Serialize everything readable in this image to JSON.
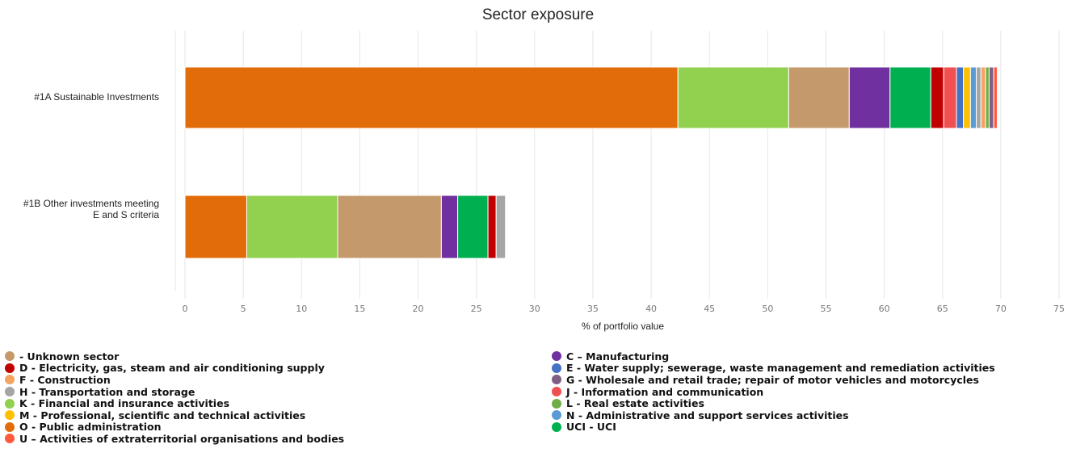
{
  "chart_data": {
    "type": "bar",
    "orientation": "horizontal",
    "stacked": true,
    "title": "Sector exposure",
    "xlabel": "% of portfolio value",
    "xlim": [
      0,
      75
    ],
    "xticks": [
      0,
      5,
      10,
      15,
      20,
      25,
      30,
      35,
      40,
      45,
      50,
      55,
      60,
      65,
      70,
      75
    ],
    "grid": "vertical",
    "legend_position": "bottom",
    "categories": [
      "#1A Sustainable Investments",
      "#1B Other investments meeting E and S criteria"
    ],
    "series": [
      {
        "name": "O - Public administration",
        "color": "#e36c0a",
        "values": [
          42.3,
          5.3
        ]
      },
      {
        "name": "K - Financial and insurance activities",
        "color": "#92d050",
        "values": [
          9.5,
          7.8
        ]
      },
      {
        "name": "- Unknown sector",
        "color": "#c49a6c",
        "values": [
          5.2,
          8.9
        ]
      },
      {
        "name": "C – Manufacturing",
        "color": "#7030a0",
        "values": [
          3.5,
          1.4
        ]
      },
      {
        "name": "UCI - UCI",
        "color": "#00b050",
        "values": [
          3.5,
          2.6
        ]
      },
      {
        "name": "D - Electricity, gas, steam and air conditioning supply",
        "color": "#c00000",
        "values": [
          1.1,
          0.7
        ]
      },
      {
        "name": "J - Information and communication",
        "color": "#f05050",
        "values": [
          1.1,
          0
        ]
      },
      {
        "name": "E - Water supply; sewerage, waste management and remediation activities",
        "color": "#4472c4",
        "values": [
          0.6,
          0
        ]
      },
      {
        "name": "M - Professional, scientific and technical activities",
        "color": "#ffc000",
        "values": [
          0.6,
          0
        ]
      },
      {
        "name": "N - Administrative and support services activities",
        "color": "#5b9bd5",
        "values": [
          0.5,
          0
        ]
      },
      {
        "name": "H - Transportation and storage",
        "color": "#a5a5a5",
        "values": [
          0.4,
          0.8
        ]
      },
      {
        "name": "F - Construction",
        "color": "#f4a460",
        "values": [
          0.4,
          0
        ]
      },
      {
        "name": "L - Real estate activities",
        "color": "#70ad47",
        "values": [
          0.3,
          0
        ]
      },
      {
        "name": "G - Wholesale and retail trade; repair of motor vehicles and motorcycles",
        "color": "#7f6084",
        "values": [
          0.4,
          0
        ]
      },
      {
        "name": "U – Activities of extraterritorial organisations and bodies",
        "color": "#ff5a3c",
        "values": [
          0.3,
          0
        ]
      }
    ]
  },
  "category_labels": [
    [
      "#1A Sustainable Investments"
    ],
    [
      "#1B Other investments meeting",
      "E and S criteria"
    ]
  ],
  "legend": {
    "left": [
      {
        "label": "- Unknown sector",
        "color": "#c49a6c"
      },
      {
        "label": "D - Electricity, gas, steam and air conditioning supply",
        "color": "#c00000"
      },
      {
        "label": "F - Construction",
        "color": "#f4a460"
      },
      {
        "label": "H - Transportation and storage",
        "color": "#a5a5a5"
      },
      {
        "label": "K - Financial and insurance activities",
        "color": "#92d050"
      },
      {
        "label": "M - Professional, scientific and technical activities",
        "color": "#ffc000"
      },
      {
        "label": "O - Public administration",
        "color": "#e36c0a"
      },
      {
        "label": "U – Activities of extraterritorial organisations and bodies",
        "color": "#ff5a3c"
      }
    ],
    "right": [
      {
        "label": "C – Manufacturing",
        "color": "#7030a0"
      },
      {
        "label": "E - Water supply; sewerage, waste management and remediation activities",
        "color": "#4472c4"
      },
      {
        "label": "G - Wholesale and retail trade; repair of motor vehicles and motorcycles",
        "color": "#7f6084"
      },
      {
        "label": "J - Information and communication",
        "color": "#f05050"
      },
      {
        "label": "L - Real estate activities",
        "color": "#70ad47"
      },
      {
        "label": "N - Administrative and support services activities",
        "color": "#5b9bd5"
      },
      {
        "label": "UCI - UCI",
        "color": "#00b050"
      }
    ]
  }
}
